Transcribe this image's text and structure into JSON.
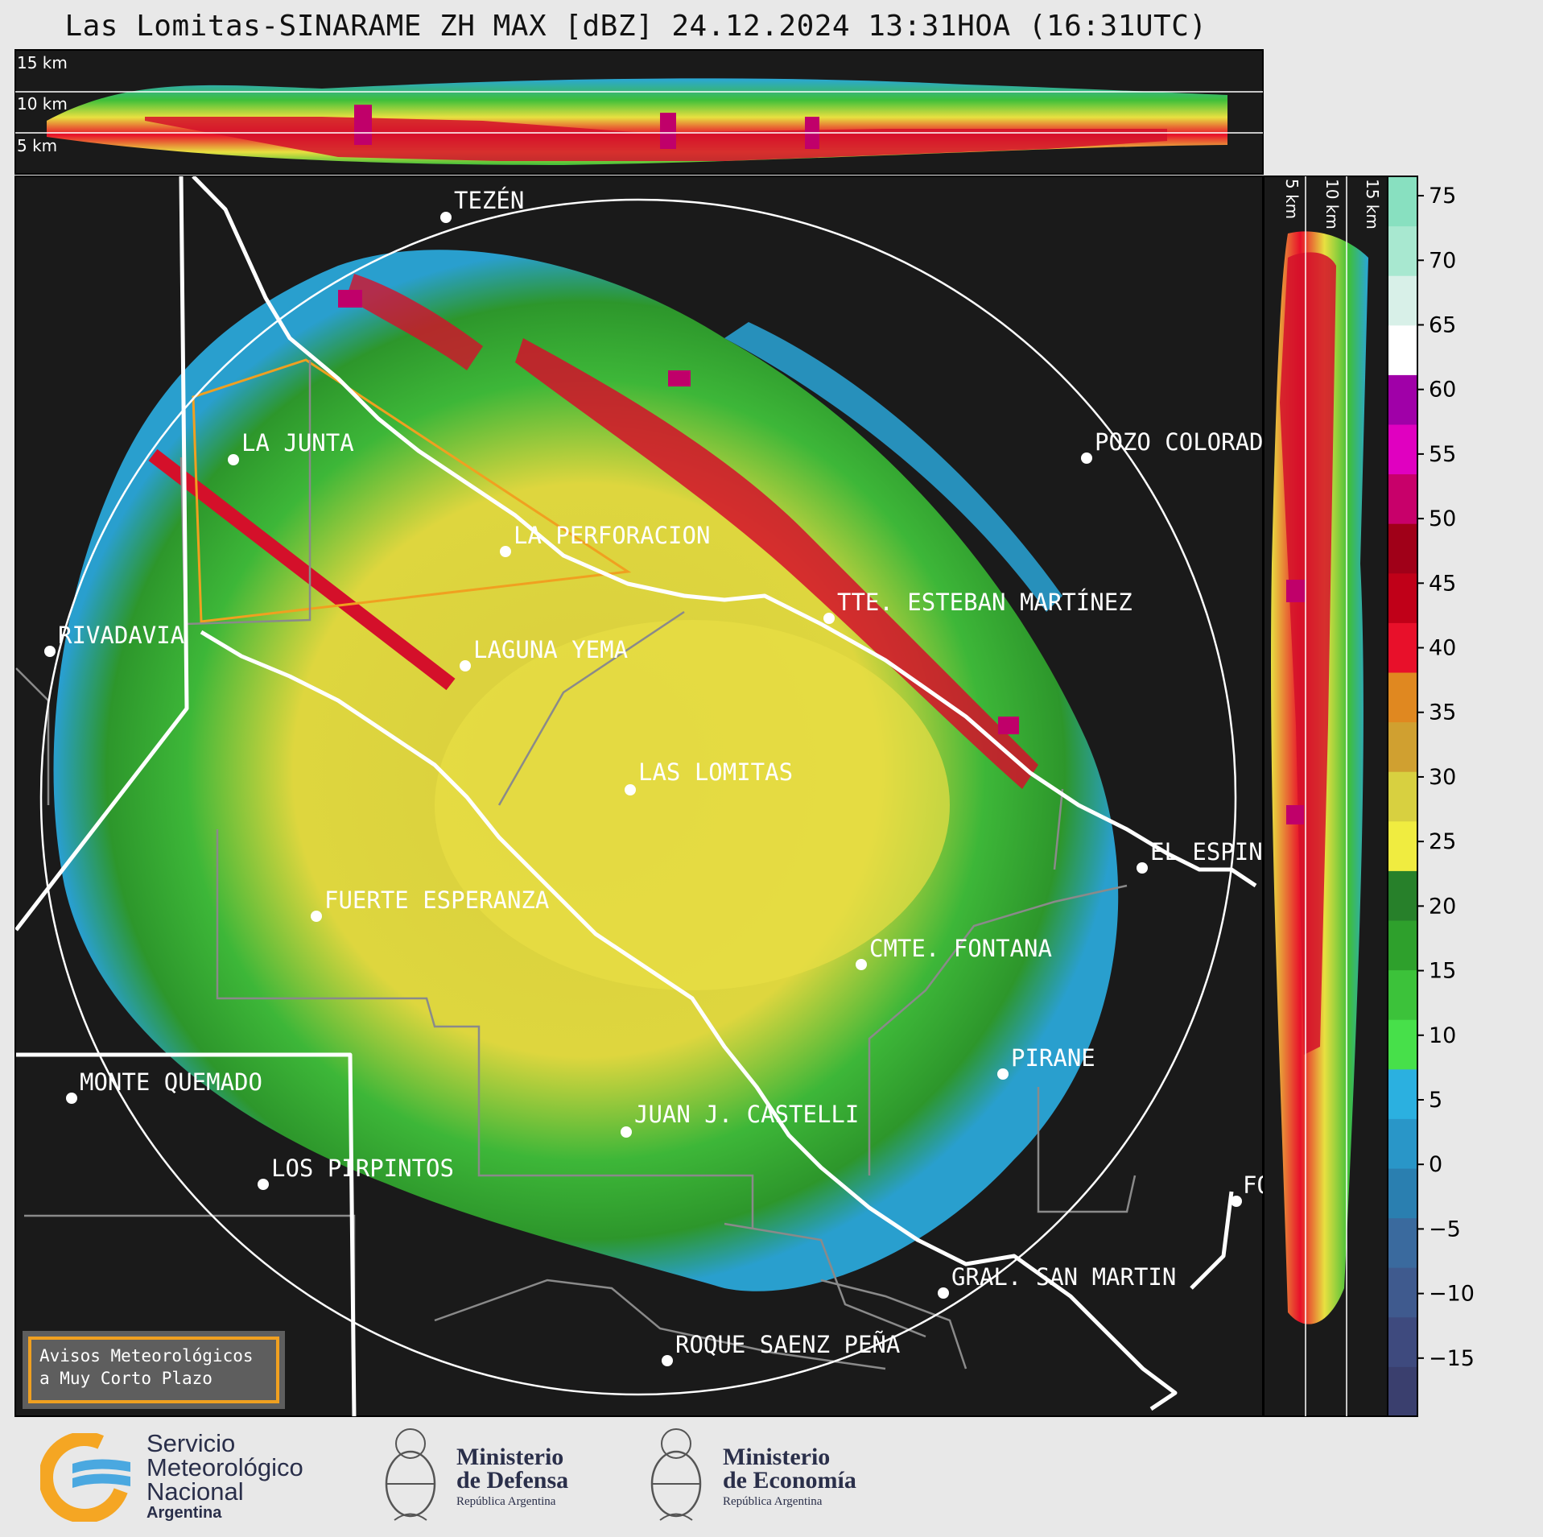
{
  "title": "Las Lomitas-SINARAME ZH MAX [dBZ] 24.12.2024 13:31HOA (16:31UTC)",
  "top_panel": {
    "labels": [
      "15 km",
      "10 km",
      "5 km"
    ]
  },
  "side_panel": {
    "labels": [
      "5 km",
      "10 km",
      "15 km"
    ]
  },
  "places": [
    {
      "name": "TEZÉN"
    },
    {
      "name": "LA JUNTA"
    },
    {
      "name": "POZO COLORADO"
    },
    {
      "name": "LA PERFORACION"
    },
    {
      "name": "TTE. ESTEBAN MARTÍNEZ"
    },
    {
      "name": "RIVADAVIA"
    },
    {
      "name": "LAGUNA YEMA"
    },
    {
      "name": "LAS LOMITAS"
    },
    {
      "name": "EL ESPINILLO"
    },
    {
      "name": "FUERTE ESPERANZA"
    },
    {
      "name": "CMTE. FONTANA"
    },
    {
      "name": "PIRANE"
    },
    {
      "name": "MONTE QUEMADO"
    },
    {
      "name": "JUAN J. CASTELLI"
    },
    {
      "name": "LOS PIRPINTOS"
    },
    {
      "name": "GRAL. SAN MARTIN"
    },
    {
      "name": "ROQUE SAENZ PEÑA"
    },
    {
      "name": "FO"
    }
  ],
  "colorbar": {
    "ticks": [
      "75",
      "70",
      "65",
      "60",
      "55",
      "50",
      "45",
      "40",
      "35",
      "30",
      "25",
      "20",
      "15",
      "10",
      "5",
      "0",
      "−5",
      "−10",
      "−15"
    ],
    "colors": [
      "#3a3f6e",
      "#3e4a7e",
      "#3f5a8e",
      "#3a6a9e",
      "#2a7fb0",
      "#2996c8",
      "#2bb0e0",
      "#47e04a",
      "#3cc23a",
      "#2ea02c",
      "#27802a",
      "#f0ec40",
      "#d8d040",
      "#d0a030",
      "#e08820",
      "#e8102a",
      "#c00018",
      "#a00018",
      "#c8006a",
      "#e000c0",
      "#a000a8",
      "#ffffff",
      "#d8f0e8",
      "#a8e8d0",
      "#88e0c0"
    ]
  },
  "avisos": {
    "line1": "Avisos Meteorológicos",
    "line2": "a Muy Corto Plazo"
  },
  "footer": {
    "smn": {
      "line1": "Servicio",
      "line2": "Meteorológico",
      "line3": "Nacional",
      "line4": "Argentina"
    },
    "defensa": {
      "line1": "Ministerio",
      "line2": "de Defensa",
      "line3": "República Argentina"
    },
    "economia": {
      "line1": "Ministerio",
      "line2": "de Economía",
      "line3": "República Argentina"
    }
  }
}
